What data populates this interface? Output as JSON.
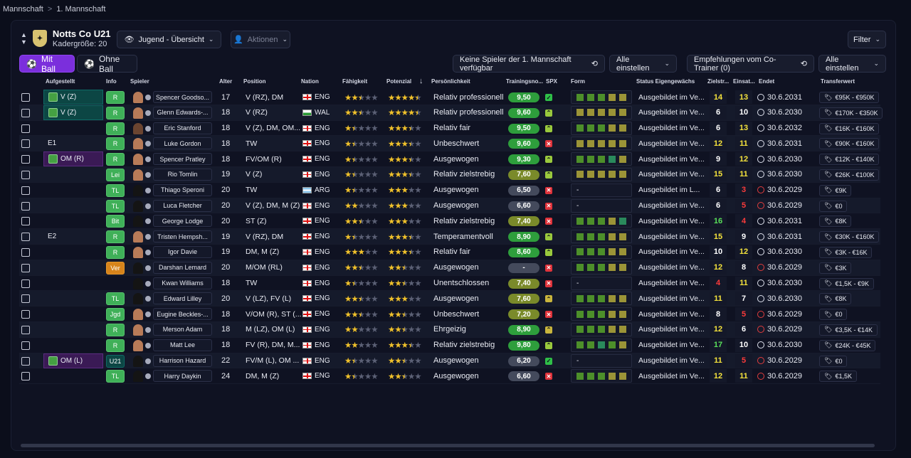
{
  "breadcrumb": {
    "root": "Mannschaft",
    "sep": ">",
    "current": "1. Mannschaft"
  },
  "team": {
    "name": "Notts Co U21",
    "squad_size": "Kadergröße: 20"
  },
  "toolbar": {
    "view": "Jugend - Übersicht",
    "actions": "Aktionen",
    "filter": "Filter",
    "mit_ball": "Mit Ball",
    "ohne_ball": "Ohne Ball",
    "no_players": "Keine Spieler der 1. Mannschaft verfügbar",
    "alle1": "Alle einstellen",
    "recommend": "Empfehlungen vom Co-Trainer (0)",
    "alle2": "Alle einstellen"
  },
  "headers": {
    "lineup": "Aufgestellt",
    "info": "Info",
    "player": "Spieler",
    "age": "Alter",
    "position": "Position",
    "nation": "Nation",
    "ability": "Fähigkeit",
    "potential": "Potenzial",
    "personality": "Persönlichkeit",
    "training": "Trainingsno...",
    "spx": "SPX",
    "form": "Form",
    "status": "Status Eigengewächs",
    "goals": "Zielstr...",
    "apps": "Einsat...",
    "ends": "Endet",
    "value": "Transferwert"
  },
  "rows": [
    {
      "lineup": "V (Z)",
      "lp": "on",
      "info": "R",
      "ic": "g",
      "name": "Spencer Goodso...",
      "av": "light",
      "age": "17",
      "pos": "V (RZ), DM",
      "flag": "eng",
      "nat": "ENG",
      "ab": 2.5,
      "po": 4.5,
      "pers": "Relativ professionell",
      "tr": "9,50",
      "tc": "g",
      "spx": "ok",
      "form": "gggyy",
      "status": "Ausgebildet im Ve...",
      "g": "14",
      "gc": "yl",
      "a": "13",
      "ac": "yl",
      "end": "30.6.2031",
      "ec": "w",
      "val": "€95K - €950K"
    },
    {
      "lineup": "V (Z)",
      "lp": "on",
      "info": "R",
      "ic": "g",
      "name": "Glenn Edwards-...",
      "av": "light",
      "age": "18",
      "pos": "V (RZ)",
      "flag": "wal",
      "nat": "WAL",
      "ab": 2.5,
      "po": 4.5,
      "pers": "Relativ professionell",
      "tr": "9,60",
      "tc": "g",
      "spx": "up",
      "form": "yyyyy",
      "status": "Ausgebildet im Ve...",
      "g": "6",
      "gc": "wh",
      "a": "10",
      "ac": "wh",
      "end": "30.6.2030",
      "ec": "w",
      "val": "€170K - €350K"
    },
    {
      "lineup": "",
      "lp": "",
      "info": "R",
      "ic": "g",
      "name": "Eric Stanford",
      "av": "",
      "age": "18",
      "pos": "V (Z), DM, OM...",
      "flag": "eng",
      "nat": "ENG",
      "ab": 1.5,
      "po": 3.5,
      "pers": "Relativ fair",
      "tr": "9,50",
      "tc": "g",
      "spx": "up",
      "form": "gggyy",
      "status": "Ausgebildet im Ve...",
      "g": "6",
      "gc": "wh",
      "a": "13",
      "ac": "yl",
      "end": "30.6.2032",
      "ec": "w",
      "val": "€16K - €160K"
    },
    {
      "lineup": "E1",
      "lp": "",
      "info": "R",
      "ic": "g",
      "name": "Luke Gordon",
      "av": "light",
      "age": "18",
      "pos": "TW",
      "flag": "eng",
      "nat": "ENG",
      "ab": 1.5,
      "po": 3.5,
      "pers": "Unbeschwert",
      "tr": "9,60",
      "tc": "g",
      "spx": "x",
      "form": "yyyyy",
      "status": "Ausgebildet im Ve...",
      "g": "12",
      "gc": "yl",
      "a": "11",
      "ac": "yl",
      "end": "30.6.2031",
      "ec": "w",
      "val": "€90K - €160K"
    },
    {
      "lineup": "OM (R)",
      "lp": "onp",
      "info": "R",
      "ic": "g",
      "name": "Spencer Pratley",
      "av": "light",
      "age": "18",
      "pos": "FV/OM (R)",
      "flag": "eng",
      "nat": "ENG",
      "ab": 1.5,
      "po": 3.5,
      "pers": "Ausgewogen",
      "tr": "9,30",
      "tc": "g",
      "spx": "up",
      "form": "gggty",
      "status": "Ausgebildet im Ve...",
      "g": "9",
      "gc": "wh",
      "a": "12",
      "ac": "yl",
      "end": "30.6.2030",
      "ec": "w",
      "val": "€12K - €140K"
    },
    {
      "lineup": "",
      "lp": "",
      "info": "Lei",
      "ic": "g",
      "name": "Rio Tomlin",
      "av": "light",
      "age": "19",
      "pos": "V (Z)",
      "flag": "eng",
      "nat": "ENG",
      "ab": 1.5,
      "po": 3.5,
      "pers": "Relativ zielstrebig",
      "tr": "7,60",
      "tc": "y",
      "spx": "up",
      "form": "yyyyy",
      "status": "Ausgebildet im Ve...",
      "g": "15",
      "gc": "yl",
      "a": "11",
      "ac": "yl",
      "end": "30.6.2030",
      "ec": "w",
      "val": "€26K - €100K"
    },
    {
      "lineup": "",
      "lp": "",
      "info": "TL",
      "ic": "g",
      "name": "Thiago Speroni",
      "av": "dark",
      "age": "20",
      "pos": "TW",
      "flag": "arg",
      "nat": "ARG",
      "ab": 1.5,
      "po": 3,
      "pers": "Ausgewogen",
      "tr": "6,50",
      "tc": "gr",
      "spx": "x",
      "form": "",
      "status": "Ausgebildet im L...",
      "g": "6",
      "gc": "wh",
      "a": "3",
      "ac": "rd",
      "end": "30.6.2029",
      "ec": "r",
      "val": "€9K"
    },
    {
      "lineup": "",
      "lp": "",
      "info": "TL",
      "ic": "g",
      "name": "Luca Fletcher",
      "av": "dark",
      "age": "20",
      "pos": "V (Z), DM, M (Z)",
      "flag": "eng",
      "nat": "ENG",
      "ab": 2,
      "po": 3,
      "pers": "Ausgewogen",
      "tr": "6,60",
      "tc": "gr",
      "spx": "x",
      "form": "",
      "status": "Ausgebildet im Ve...",
      "g": "6",
      "gc": "wh",
      "a": "5",
      "ac": "rd",
      "end": "30.6.2029",
      "ec": "r",
      "val": "€0"
    },
    {
      "lineup": "",
      "lp": "",
      "info": "Bit",
      "ic": "g",
      "name": "George Lodge",
      "av": "dark",
      "age": "20",
      "pos": "ST (Z)",
      "flag": "eng",
      "nat": "ENG",
      "ab": 2.5,
      "po": 3,
      "pers": "Relativ zielstrebig",
      "tr": "7,40",
      "tc": "y",
      "spx": "x",
      "form": "gggyt",
      "status": "Ausgebildet im Ve...",
      "g": "16",
      "gc": "gn",
      "a": "4",
      "ac": "rd",
      "end": "30.6.2031",
      "ec": "w",
      "val": "€8K"
    },
    {
      "lineup": "E2",
      "lp": "",
      "info": "R",
      "ic": "g",
      "name": "Tristen Hempsh...",
      "av": "light",
      "age": "19",
      "pos": "V (RZ), DM",
      "flag": "eng",
      "nat": "ENG",
      "ab": 1.5,
      "po": 3.5,
      "pers": "Temperamentvoll",
      "tr": "8,90",
      "tc": "g",
      "spx": "up",
      "form": "gggyy",
      "status": "Ausgebildet im Ve...",
      "g": "15",
      "gc": "yl",
      "a": "9",
      "ac": "wh",
      "end": "30.6.2031",
      "ec": "w",
      "val": "€30K - €160K"
    },
    {
      "lineup": "",
      "lp": "",
      "info": "R",
      "ic": "g",
      "name": "Igor Davie",
      "av": "light",
      "age": "19",
      "pos": "DM, M (Z)",
      "flag": "eng",
      "nat": "ENG",
      "ab": 3,
      "po": 3.5,
      "pers": "Relativ fair",
      "tr": "8,60",
      "tc": "g",
      "spx": "up",
      "form": "gggyy",
      "status": "Ausgebildet im Ve...",
      "g": "10",
      "gc": "wh",
      "a": "12",
      "ac": "yl",
      "end": "30.6.2030",
      "ec": "w",
      "val": "€3K - €16K"
    },
    {
      "lineup": "",
      "lp": "",
      "info": "Ver",
      "ic": "o",
      "name": "Darshan Lemard",
      "av": "dark",
      "age": "20",
      "pos": "M/OM (RL)",
      "flag": "eng",
      "nat": "ENG",
      "ab": 2.5,
      "po": 2.5,
      "pers": "Ausgewogen",
      "tr": "-",
      "tc": "gr",
      "spx": "x",
      "form": "gggyy",
      "status": "Ausgebildet im Ve...",
      "g": "12",
      "gc": "yl",
      "a": "8",
      "ac": "wh",
      "end": "30.6.2029",
      "ec": "r",
      "val": "€3K"
    },
    {
      "lineup": "",
      "lp": "",
      "info": "",
      "ic": "",
      "name": "Kwan Williams",
      "av": "dark",
      "age": "18",
      "pos": "TW",
      "flag": "eng",
      "nat": "ENG",
      "ab": 1.5,
      "po": 2.5,
      "pers": "Unentschlossen",
      "tr": "7,40",
      "tc": "y",
      "spx": "x",
      "form": "",
      "status": "Ausgebildet im Ve...",
      "g": "4",
      "gc": "rd",
      "a": "11",
      "ac": "yl",
      "end": "30.6.2030",
      "ec": "w",
      "val": "€1,5K - €9K"
    },
    {
      "lineup": "",
      "lp": "",
      "info": "TL",
      "ic": "g",
      "name": "Edward Lilley",
      "av": "dark",
      "age": "20",
      "pos": "V (LZ), FV (L)",
      "flag": "eng",
      "nat": "ENG",
      "ab": 2.5,
      "po": 3,
      "pers": "Ausgewogen",
      "tr": "7,60",
      "tc": "y",
      "spx": "up2",
      "form": "gggyy",
      "status": "Ausgebildet im Ve...",
      "g": "11",
      "gc": "yl",
      "a": "7",
      "ac": "wh",
      "end": "30.6.2030",
      "ec": "w",
      "val": "€8K"
    },
    {
      "lineup": "",
      "lp": "",
      "info": "Jgd",
      "ic": "g",
      "name": "Eugine Beckles-...",
      "av": "light",
      "age": "18",
      "pos": "V/OM (R), ST (...",
      "flag": "eng",
      "nat": "ENG",
      "ab": 2.5,
      "po": 2.5,
      "pers": "Unbeschwert",
      "tr": "7,20",
      "tc": "y",
      "spx": "x",
      "form": "gggyy",
      "status": "Ausgebildet im Ve...",
      "g": "8",
      "gc": "wh",
      "a": "5",
      "ac": "rd",
      "end": "30.6.2029",
      "ec": "r",
      "val": "€0"
    },
    {
      "lineup": "",
      "lp": "",
      "info": "R",
      "ic": "g",
      "name": "Merson Adam",
      "av": "light",
      "age": "18",
      "pos": "M (LZ), OM (L)",
      "flag": "eng",
      "nat": "ENG",
      "ab": 2,
      "po": 2.5,
      "pers": "Ehrgeizig",
      "tr": "8,90",
      "tc": "g",
      "spx": "up2",
      "form": "gggyy",
      "status": "Ausgebildet im Ve...",
      "g": "12",
      "gc": "yl",
      "a": "6",
      "ac": "wh",
      "end": "30.6.2029",
      "ec": "r",
      "val": "€3,5K - €14K"
    },
    {
      "lineup": "",
      "lp": "",
      "info": "R",
      "ic": "g",
      "name": "Matt Lee",
      "av": "light",
      "age": "18",
      "pos": "FV (R), DM, M...",
      "flag": "eng",
      "nat": "ENG",
      "ab": 2,
      "po": 3.5,
      "pers": "Relativ zielstrebig",
      "tr": "9,80",
      "tc": "g",
      "spx": "up",
      "form": "ggtgy",
      "status": "Ausgebildet im Ve...",
      "g": "17",
      "gc": "gn",
      "a": "10",
      "ac": "wh",
      "end": "30.6.2030",
      "ec": "w",
      "val": "€24K - €45K"
    },
    {
      "lineup": "OM (L)",
      "lp": "onp",
      "info": "U21",
      "ic": "d",
      "name": "Harrison Hazard",
      "av": "dark",
      "age": "22",
      "pos": "FV/M (L), OM ...",
      "flag": "eng",
      "nat": "ENG",
      "ab": 1.5,
      "po": 2.5,
      "pers": "Ausgewogen",
      "tr": "6,20",
      "tc": "gr",
      "spx": "ok",
      "form": "",
      "status": "Ausgebildet im Ve...",
      "g": "11",
      "gc": "yl",
      "a": "5",
      "ac": "rd",
      "end": "30.6.2029",
      "ec": "r",
      "val": "€0"
    },
    {
      "lineup": "",
      "lp": "",
      "info": "TL",
      "ic": "g",
      "name": "Harry Daykin",
      "av": "dark",
      "age": "24",
      "pos": "DM, M (Z)",
      "flag": "eng",
      "nat": "ENG",
      "ab": 1.5,
      "po": 2.5,
      "pers": "Ausgewogen",
      "tr": "6,60",
      "tc": "gr",
      "spx": "x",
      "form": "gggyy",
      "status": "Ausgebildet im Ve...",
      "g": "12",
      "gc": "yl",
      "a": "11",
      "ac": "yl",
      "end": "30.6.2029",
      "ec": "r",
      "val": "€1,5K"
    }
  ]
}
